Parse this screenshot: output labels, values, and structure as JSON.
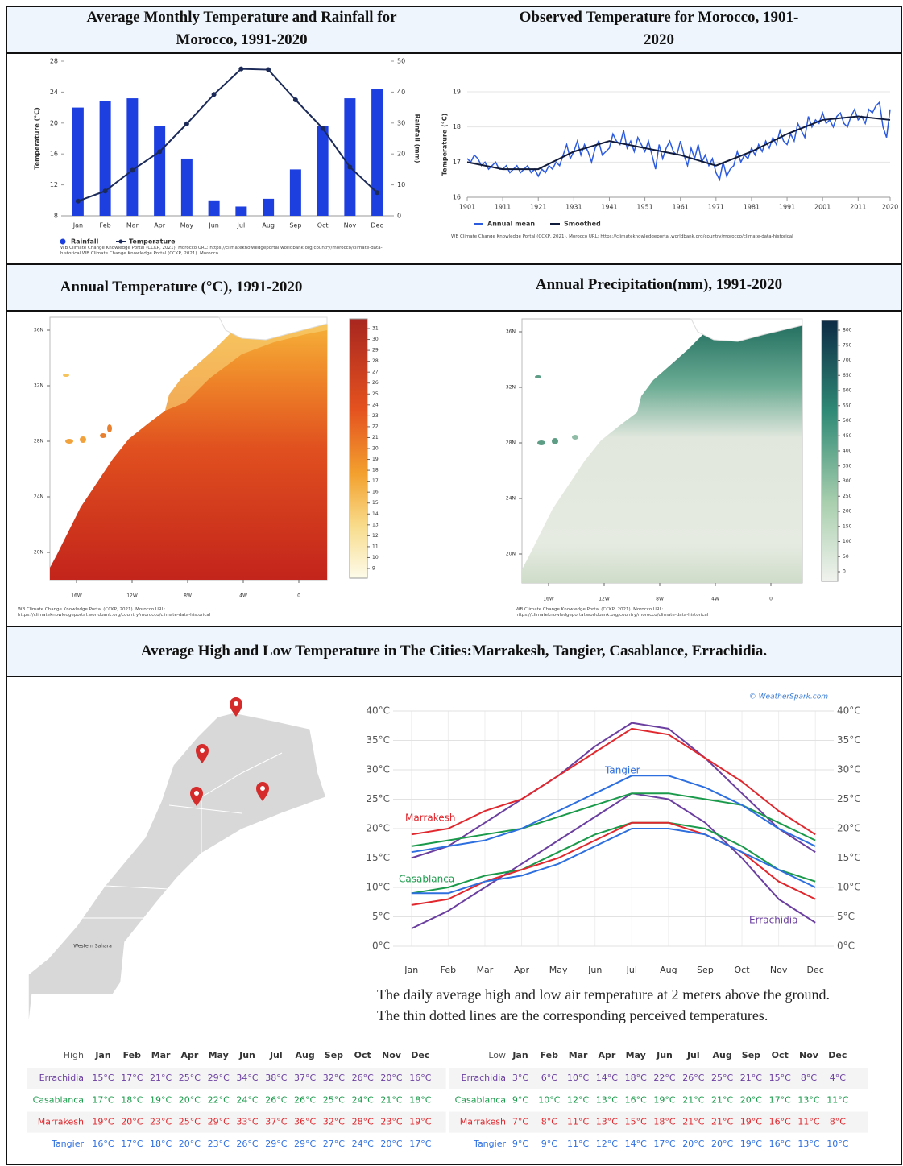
{
  "chart_data": [
    {
      "type": "bar-line",
      "title": "Average Monthly Temperature and Rainfall for Morocco, 1991-2020",
      "source": "WB Climate Change Knowledge Portal (CCKP, 2021). Morocco URL: https://climateknowledgeportal.worldbank.org/country/morocco/climate-data-historical WB Climate Change Knowledge Portal (CCKP, 2021). Morocco",
      "ylabel": "Temperature (°C)",
      "y2label": "Rainfall (mm)",
      "categories": [
        "Jan",
        "Feb",
        "Mar",
        "Apr",
        "May",
        "Jun",
        "Jul",
        "Aug",
        "Sep",
        "Oct",
        "Nov",
        "Dec"
      ],
      "ylim": [
        8,
        28
      ],
      "yticks": [
        8,
        12,
        16,
        20,
        24,
        28
      ],
      "y2lim": [
        0,
        50
      ],
      "y2ticks": [
        0,
        10,
        20,
        30,
        40,
        50
      ],
      "series": [
        {
          "name": "Rainfall",
          "type": "bar",
          "axis": "y2",
          "color": "#1d3fe0",
          "values": [
            35,
            37,
            38,
            29,
            18.5,
            5,
            3,
            5.5,
            15,
            29,
            38,
            41
          ]
        },
        {
          "name": "Temperature",
          "type": "line",
          "color": "#1b2a58",
          "values": [
            9.9,
            11.2,
            13.9,
            16.3,
            19.9,
            23.7,
            27,
            26.9,
            23,
            19.3,
            14.3,
            11
          ]
        }
      ]
    },
    {
      "type": "line",
      "title": "Observed Temperature for Morocco, 1901-2020",
      "source": "WB Climate Change Knowledge Portal (CCKP, 2021). Morocco URL: https://climateknowledgeportal.worldbank.org/country/morocco/climate-data-historical",
      "ylabel": "Temperature (°C)",
      "xlim": [
        1901,
        2020
      ],
      "xticks": [
        1901,
        1911,
        1921,
        1931,
        1941,
        1951,
        1961,
        1971,
        1981,
        1991,
        2001,
        2011,
        2020
      ],
      "ylim": [
        16,
        19
      ],
      "yticks": [
        16,
        17,
        18,
        19
      ],
      "grid": true,
      "series": [
        {
          "name": "Annual mean",
          "color": "#2c5be0",
          "x": [
            1901,
            1902,
            1903,
            1904,
            1905,
            1906,
            1907,
            1908,
            1909,
            1910,
            1911,
            1912,
            1913,
            1914,
            1915,
            1916,
            1917,
            1918,
            1919,
            1920,
            1921,
            1922,
            1923,
            1924,
            1925,
            1926,
            1927,
            1928,
            1929,
            1930,
            1931,
            1932,
            1933,
            1934,
            1935,
            1936,
            1937,
            1938,
            1939,
            1940,
            1941,
            1942,
            1943,
            1944,
            1945,
            1946,
            1947,
            1948,
            1949,
            1950,
            1951,
            1952,
            1953,
            1954,
            1955,
            1956,
            1957,
            1958,
            1959,
            1960,
            1961,
            1962,
            1963,
            1964,
            1965,
            1966,
            1967,
            1968,
            1969,
            1970,
            1971,
            1972,
            1973,
            1974,
            1975,
            1976,
            1977,
            1978,
            1979,
            1980,
            1981,
            1982,
            1983,
            1984,
            1985,
            1986,
            1987,
            1988,
            1989,
            1990,
            1991,
            1992,
            1993,
            1994,
            1995,
            1996,
            1997,
            1998,
            1999,
            2000,
            2001,
            2002,
            2003,
            2004,
            2005,
            2006,
            2007,
            2008,
            2009,
            2010,
            2011,
            2012,
            2013,
            2014,
            2015,
            2016,
            2017,
            2018,
            2019,
            2020
          ],
          "values": [
            17.1,
            17.0,
            17.2,
            17.1,
            16.9,
            17.0,
            16.8,
            16.9,
            17.0,
            16.8,
            16.8,
            16.9,
            16.7,
            16.8,
            16.9,
            16.7,
            16.8,
            16.9,
            16.7,
            16.8,
            16.6,
            16.8,
            16.7,
            16.9,
            16.8,
            17.0,
            16.9,
            17.2,
            17.5,
            17.1,
            17.3,
            17.6,
            17.2,
            17.5,
            17.3,
            17.0,
            17.4,
            17.6,
            17.2,
            17.3,
            17.4,
            17.8,
            17.6,
            17.5,
            17.9,
            17.4,
            17.6,
            17.3,
            17.7,
            17.5,
            17.3,
            17.6,
            17.2,
            16.8,
            17.5,
            17.1,
            17.4,
            17.6,
            17.3,
            17.2,
            17.6,
            17.2,
            16.9,
            17.4,
            17.1,
            17.5,
            17.0,
            17.2,
            16.9,
            17.1,
            16.7,
            16.5,
            17.0,
            16.6,
            16.8,
            16.9,
            17.3,
            17.0,
            17.2,
            17.1,
            17.4,
            17.2,
            17.5,
            17.3,
            17.6,
            17.4,
            17.7,
            17.5,
            17.9,
            17.6,
            17.5,
            17.8,
            17.6,
            18.1,
            17.9,
            17.7,
            18.3,
            18.0,
            18.2,
            18.1,
            18.4,
            18.1,
            18.2,
            18.0,
            18.3,
            18.4,
            18.1,
            18.0,
            18.3,
            18.5,
            18.2,
            18.3,
            18.1,
            18.5,
            18.4,
            18.6,
            18.7,
            18.0,
            17.7,
            18.5
          ]
        },
        {
          "name": "Smoothed",
          "color": "#101a3a",
          "x": [
            1901,
            1911,
            1921,
            1931,
            1941,
            1951,
            1961,
            1971,
            1981,
            1991,
            2001,
            2011,
            2020
          ],
          "values": [
            17.0,
            16.8,
            16.8,
            17.3,
            17.6,
            17.4,
            17.2,
            16.9,
            17.3,
            17.8,
            18.2,
            18.3,
            18.2
          ]
        }
      ]
    },
    {
      "type": "map",
      "title": "Annual Temperature (°C), 1991-2020",
      "source": "WB Climate Change Knowledge Portal (CCKP, 2021). Morocco URL: https://climateknowledgeportal.worldbank.org/country/morocco/climate-data-historical",
      "colorbar_ticks": [
        9,
        10,
        11,
        12,
        13,
        14,
        15,
        16,
        17,
        18,
        19,
        20,
        21,
        22,
        23,
        24,
        25,
        26,
        27,
        28,
        29,
        30,
        31
      ],
      "lat_ticks": [
        {
          "value": 36,
          "label": "36N"
        },
        {
          "value": 32,
          "label": "32N"
        },
        {
          "value": 28,
          "label": "28N"
        },
        {
          "value": 24,
          "label": "24N"
        },
        {
          "value": 20,
          "label": "20N"
        }
      ],
      "lon_ticks": [
        {
          "value": -16,
          "label": "16W"
        },
        {
          "value": -12,
          "label": "12W"
        },
        {
          "value": -8,
          "label": "8W"
        },
        {
          "value": -4,
          "label": "4W"
        },
        0
      ]
    },
    {
      "type": "map",
      "title": "Annual Precipitation(mm), 1991-2020",
      "source": "WB Climate Change Knowledge Portal (CCKP, 2021). Morocco URL: https://climateknowledgeportal.worldbank.org/country/morocco/climate-data-historical",
      "colorbar_ticks": [
        0,
        50,
        100,
        150,
        200,
        250,
        300,
        350,
        400,
        450,
        500,
        550,
        600,
        650,
        700,
        750,
        800
      ],
      "lat_ticks": [
        {
          "value": 36,
          "label": "36N"
        },
        {
          "value": 32,
          "label": "32N"
        },
        {
          "value": 28,
          "label": "28N"
        },
        {
          "value": 24,
          "label": "24N"
        },
        {
          "value": 20,
          "label": "20N"
        }
      ],
      "lon_ticks": [
        {
          "value": -16,
          "label": "16W"
        },
        {
          "value": -12,
          "label": "12W"
        },
        {
          "value": -8,
          "label": "8W"
        },
        {
          "value": -4,
          "label": "4W"
        },
        0
      ]
    },
    {
      "type": "line",
      "credit": "© WeatherSpark.com",
      "caption": "The daily average high and low air temperature at 2 meters above the ground. The thin dotted lines are the corresponding perceived temperatures.",
      "categories": [
        "Jan",
        "Feb",
        "Mar",
        "Apr",
        "May",
        "Jun",
        "Jul",
        "Aug",
        "Sep",
        "Oct",
        "Nov",
        "Dec"
      ],
      "ylim": [
        0,
        40
      ],
      "yticks": [
        {
          "value": 0,
          "label": "0°C"
        },
        {
          "value": 5,
          "label": "5°C"
        },
        {
          "value": 10,
          "label": "10°C"
        },
        {
          "value": 15,
          "label": "15°C"
        },
        {
          "value": 20,
          "label": "20°C"
        },
        {
          "value": 25,
          "label": "25°C"
        },
        {
          "value": 30,
          "label": "30°C"
        },
        {
          "value": 35,
          "label": "35°C"
        },
        {
          "value": 40,
          "label": "40°C"
        }
      ],
      "grid": true,
      "series": [
        {
          "name": "Errachidia",
          "color": "#6b3fa0",
          "high": [
            15,
            17,
            21,
            25,
            29,
            34,
            38,
            37,
            32,
            26,
            20,
            16
          ],
          "low": [
            3,
            6,
            10,
            14,
            18,
            22,
            26,
            25,
            21,
            15,
            8,
            4
          ]
        },
        {
          "name": "Casablanca",
          "color": "#1a9a4a",
          "high": [
            17,
            18,
            19,
            20,
            22,
            24,
            26,
            26,
            25,
            24,
            21,
            18
          ],
          "low": [
            9,
            10,
            12,
            13,
            16,
            19,
            21,
            21,
            20,
            17,
            13,
            11
          ]
        },
        {
          "name": "Marrakesh",
          "color": "#e0282e",
          "high": [
            19,
            20,
            23,
            25,
            29,
            33,
            37,
            36,
            32,
            28,
            23,
            19
          ],
          "low": [
            7,
            8,
            11,
            13,
            15,
            18,
            21,
            21,
            19,
            16,
            11,
            8
          ]
        },
        {
          "name": "Tangier",
          "color": "#2e6fe0",
          "high": [
            16,
            17,
            18,
            20,
            23,
            26,
            29,
            29,
            27,
            24,
            20,
            17
          ],
          "low": [
            9,
            9,
            11,
            12,
            14,
            17,
            20,
            20,
            19,
            16,
            13,
            10
          ]
        }
      ]
    }
  ],
  "section_title": "Average High and Low Temperature in The Cities:Marrakesh, Tangier, Casablance, Errachidia.",
  "map": {
    "label": "Western Sahara"
  },
  "tables": [
    {
      "header": [
        "High",
        "Jan",
        "Feb",
        "Mar",
        "Apr",
        "May",
        "Jun",
        "Jul",
        "Aug",
        "Sep",
        "Oct",
        "Nov",
        "Dec"
      ],
      "rows": [
        [
          "Errachidia",
          "15°C",
          "17°C",
          "21°C",
          "25°C",
          "29°C",
          "34°C",
          "38°C",
          "37°C",
          "32°C",
          "26°C",
          "20°C",
          "16°C"
        ],
        [
          "Casablanca",
          "17°C",
          "18°C",
          "19°C",
          "20°C",
          "22°C",
          "24°C",
          "26°C",
          "26°C",
          "25°C",
          "24°C",
          "21°C",
          "18°C"
        ],
        [
          "Marrakesh",
          "19°C",
          "20°C",
          "23°C",
          "25°C",
          "29°C",
          "33°C",
          "37°C",
          "36°C",
          "32°C",
          "28°C",
          "23°C",
          "19°C"
        ],
        [
          "Tangier",
          "16°C",
          "17°C",
          "18°C",
          "20°C",
          "23°C",
          "26°C",
          "29°C",
          "29°C",
          "27°C",
          "24°C",
          "20°C",
          "17°C"
        ]
      ]
    },
    {
      "header": [
        "Low",
        "Jan",
        "Feb",
        "Mar",
        "Apr",
        "May",
        "Jun",
        "Jul",
        "Aug",
        "Sep",
        "Oct",
        "Nov",
        "Dec"
      ],
      "rows": [
        [
          "Errachidia",
          "3°C",
          "6°C",
          "10°C",
          "14°C",
          "18°C",
          "22°C",
          "26°C",
          "25°C",
          "21°C",
          "15°C",
          "8°C",
          "4°C"
        ],
        [
          "Casablanca",
          "9°C",
          "10°C",
          "12°C",
          "13°C",
          "16°C",
          "19°C",
          "21°C",
          "21°C",
          "20°C",
          "17°C",
          "13°C",
          "11°C"
        ],
        [
          "Marrakesh",
          "7°C",
          "8°C",
          "11°C",
          "13°C",
          "15°C",
          "18°C",
          "21°C",
          "21°C",
          "19°C",
          "16°C",
          "11°C",
          "8°C"
        ],
        [
          "Tangier",
          "9°C",
          "9°C",
          "11°C",
          "12°C",
          "14°C",
          "17°C",
          "20°C",
          "20°C",
          "19°C",
          "16°C",
          "13°C",
          "10°C"
        ]
      ]
    }
  ]
}
